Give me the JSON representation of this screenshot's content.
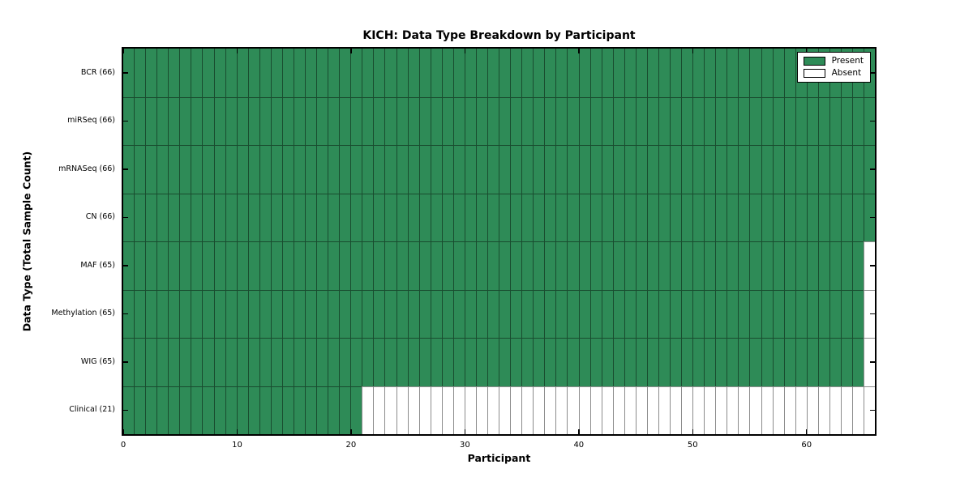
{
  "chart_data": {
    "type": "heatmap",
    "title": "KICH: Data Type Breakdown by Participant",
    "xlabel": "Participant",
    "ylabel": "Data Type (Total Sample Count)",
    "n_participants": 66,
    "xlim": [
      0,
      66
    ],
    "x_ticks": [
      0,
      10,
      20,
      30,
      40,
      50,
      60
    ],
    "rows": [
      {
        "label": "BCR (66)",
        "data_type": "bcr",
        "total_samples": 66,
        "present_count": 66
      },
      {
        "label": "miRSeq (66)",
        "data_type": "mirseq",
        "total_samples": 66,
        "present_count": 66
      },
      {
        "label": "mRNASeq (66)",
        "data_type": "mrnaseq",
        "total_samples": 66,
        "present_count": 66
      },
      {
        "label": "CN (66)",
        "data_type": "cn",
        "total_samples": 66,
        "present_count": 66
      },
      {
        "label": "MAF (65)",
        "data_type": "maf",
        "total_samples": 65,
        "present_count": 65
      },
      {
        "label": "Methylation (65)",
        "data_type": "methylation",
        "total_samples": 65,
        "present_count": 65
      },
      {
        "label": "WIG (65)",
        "data_type": "wig",
        "total_samples": 65,
        "present_count": 65
      },
      {
        "label": "Clinical (21)",
        "data_type": "clinical",
        "total_samples": 21,
        "present_count": 21
      }
    ],
    "legend": [
      {
        "label": "Present",
        "color": "#2e8b57"
      },
      {
        "label": "Absent",
        "color": "#ffffff"
      }
    ],
    "colors": {
      "present": "#2e8b57",
      "absent": "#ffffff",
      "grid_line": "rgba(0,0,0,0.45)",
      "spine": "#000000"
    },
    "legend_position": "upper right",
    "grid": true
  }
}
